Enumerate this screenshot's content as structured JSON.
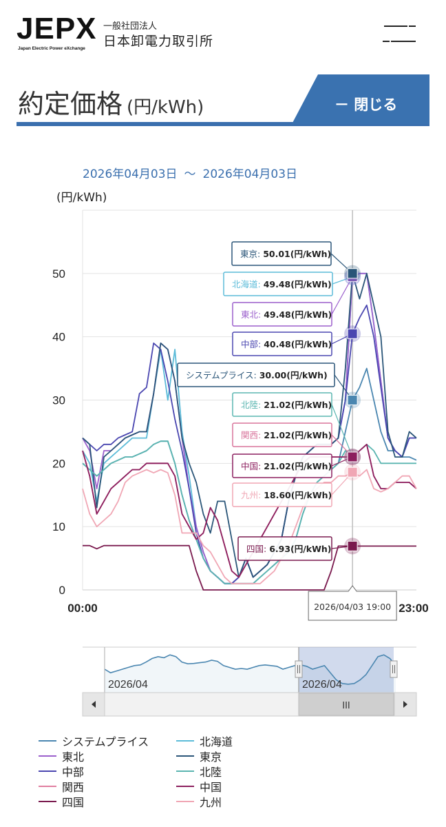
{
  "header": {
    "logo_text": "JEPX",
    "logo_subtitle": "Japan Electric Power eXchange",
    "org_type": "一般社団法人",
    "org_name": "日本卸電力取引所",
    "menu_icon": "menu-icon"
  },
  "page": {
    "title": "約定価格",
    "title_unit": "(円/kWh)",
    "close_label": "－ 閉じる"
  },
  "range": {
    "from": "2026年04月03日",
    "separator": "〜",
    "to": "2026年04月03日"
  },
  "chart_data": {
    "type": "line",
    "title": "",
    "ylabel": "(円/kWh)",
    "xlabel": "",
    "ylim": [
      0,
      60
    ],
    "yticks": [
      0,
      10,
      20,
      30,
      40,
      50
    ],
    "x_tick_labels": [
      "00:00",
      "23:00"
    ],
    "hover_time": "2026/04/03 19:00",
    "hover_index": 38,
    "periods": 48,
    "series": [
      {
        "name": "システムプライス",
        "color": "#4a86b0",
        "values": [
          20,
          19,
          18,
          19,
          20,
          20.5,
          21,
          21,
          21.5,
          22,
          23,
          23.5,
          23.5,
          20,
          15,
          11,
          8,
          5,
          3,
          2,
          1,
          1,
          1,
          1,
          1,
          2,
          3,
          4,
          5,
          6,
          8,
          12,
          15,
          17,
          18,
          19,
          20,
          25,
          30,
          32,
          35,
          30,
          25,
          22,
          22,
          21,
          21,
          20.5
        ]
      },
      {
        "name": "北海道",
        "color": "#5bbbd8",
        "values": [
          22,
          20,
          14,
          20,
          21,
          22,
          23,
          24,
          24,
          24,
          31,
          38,
          30,
          38,
          25,
          18,
          10,
          6,
          3,
          2,
          1,
          1,
          2,
          5,
          2,
          3,
          4,
          6,
          8,
          14,
          18,
          21,
          22,
          23,
          23,
          23,
          24,
          30,
          49.48,
          50,
          50,
          42,
          33,
          24,
          22,
          21,
          24,
          24
        ]
      },
      {
        "name": "東北",
        "color": "#9b5fcc",
        "values": [
          24,
          22,
          16,
          22,
          22,
          23,
          24,
          24.5,
          25,
          25,
          31,
          39,
          38,
          33,
          24,
          16,
          10,
          6,
          3,
          2,
          1,
          1,
          2,
          5,
          2,
          3,
          4,
          6,
          8,
          14,
          18,
          21,
          22,
          23,
          23,
          23,
          24,
          30,
          49.48,
          50,
          50,
          42,
          33,
          24,
          22,
          21,
          24,
          24
        ]
      },
      {
        "name": "中部",
        "color": "#4a46b0",
        "values": [
          24,
          23,
          22,
          23,
          23,
          24,
          24.5,
          25,
          31,
          32,
          39,
          38,
          33,
          27,
          22,
          16,
          9,
          5,
          3,
          2,
          1,
          1,
          2,
          5,
          2,
          3,
          4,
          6,
          8,
          14,
          18,
          21,
          22,
          23,
          23,
          23,
          24,
          30,
          40.48,
          43,
          45,
          40,
          32,
          24,
          22,
          21,
          24,
          24
        ]
      },
      {
        "name": "東京",
        "color": "#2a5578",
        "values": [
          24,
          23,
          13,
          21,
          22,
          23,
          24,
          24.5,
          25,
          25,
          31,
          39,
          38,
          33,
          24,
          20,
          17,
          12,
          9,
          14,
          14,
          8,
          2,
          5,
          2,
          3,
          4,
          6,
          8,
          14,
          18,
          21,
          22,
          23,
          23,
          23,
          24,
          35,
          50.01,
          46,
          50,
          45,
          40,
          25,
          21,
          21,
          25,
          24
        ]
      },
      {
        "name": "北陸",
        "color": "#5ab5b0",
        "values": [
          20,
          19,
          18,
          19,
          20,
          20.5,
          21,
          21,
          21.5,
          22,
          23,
          23.5,
          23.5,
          20,
          15,
          11,
          8,
          5,
          3,
          2,
          1,
          1,
          1,
          1,
          1,
          2,
          3,
          4,
          5,
          6,
          8,
          12,
          15,
          17,
          18,
          19,
          20,
          22,
          21.02,
          22,
          23,
          22,
          20,
          20,
          20,
          20,
          20,
          20
        ]
      },
      {
        "name": "関西",
        "color": "#d8739a",
        "values": [
          22,
          18,
          12,
          14,
          16,
          17,
          18,
          19,
          19,
          20,
          20,
          20,
          20,
          18,
          12,
          10,
          8,
          9,
          13,
          11,
          7,
          3,
          2,
          4,
          6,
          8,
          10,
          12,
          14,
          16,
          18,
          20,
          21,
          21,
          21,
          21,
          21,
          21,
          21.02,
          22,
          23,
          18,
          16,
          16,
          17,
          17,
          17,
          16
        ]
      },
      {
        "name": "中国",
        "color": "#8c1f5e",
        "values": [
          22,
          18,
          12,
          14,
          16,
          17,
          18,
          19,
          19,
          20,
          20,
          20,
          20,
          18,
          12,
          10,
          8,
          9,
          13,
          11,
          7,
          3,
          2,
          4,
          6,
          8,
          10,
          12,
          14,
          16,
          18,
          20,
          21,
          21,
          21,
          21,
          21,
          21,
          21.02,
          22,
          23,
          18,
          16,
          16,
          17,
          17,
          17,
          16
        ]
      },
      {
        "name": "四国",
        "color": "#7a1a4e",
        "values": [
          7,
          7,
          6.5,
          7,
          7,
          7,
          7,
          7,
          7,
          7,
          7,
          7,
          7,
          7,
          7,
          7,
          3,
          0,
          0,
          0,
          0,
          0,
          0,
          0,
          0,
          0,
          0,
          0,
          0,
          0,
          0,
          0,
          0,
          0,
          0,
          3,
          6.93,
          6.93,
          6.93,
          6.93,
          6.93,
          6.93,
          6.93,
          6.93,
          6.93,
          6.93,
          6.93,
          6.93
        ]
      },
      {
        "name": "九州",
        "color": "#f0a6b4",
        "values": [
          16,
          12,
          10,
          11,
          12,
          14,
          17,
          18,
          18.5,
          19,
          18.5,
          19,
          18.5,
          15,
          9,
          9,
          9,
          7,
          6,
          4,
          2,
          1,
          1,
          1,
          1,
          1,
          2,
          3,
          5,
          7,
          10,
          13,
          15,
          16,
          17,
          17,
          18,
          18,
          18.6,
          18,
          19,
          16,
          15.5,
          16,
          17,
          18,
          18,
          16
        ]
      }
    ],
    "tooltips": [
      {
        "region": "東京",
        "value": "50.01(円/kWh)",
        "color": "#2a5578"
      },
      {
        "region": "北海道",
        "value": "49.48(円/kWh)",
        "color": "#5bbbd8"
      },
      {
        "region": "東北",
        "value": "49.48(円/kWh)",
        "color": "#9b5fcc"
      },
      {
        "region": "中部",
        "value": "40.48(円/kWh)",
        "color": "#4a46b0"
      },
      {
        "region": "システムプライス",
        "value": "30.00(円/kWh)",
        "color": "#2a5578"
      },
      {
        "region": "北陸",
        "value": "21.02(円/kWh)",
        "color": "#5ab5b0"
      },
      {
        "region": "関西",
        "value": "21.02(円/kWh)",
        "color": "#d8739a"
      },
      {
        "region": "中国",
        "value": "21.02(円/kWh)",
        "color": "#8c1f5e"
      },
      {
        "region": "九州",
        "value": "18.60(円/kWh)",
        "color": "#f0a6b4"
      },
      {
        "region": "四国",
        "value": "6.93(円/kWh)",
        "color": "#7a1a4e"
      }
    ],
    "navigator": {
      "labels": [
        "2026/04",
        "2026/04"
      ],
      "handle_grip": "III"
    }
  },
  "legend": [
    {
      "name": "システムプライス",
      "color": "#4a86b0"
    },
    {
      "name": "北海道",
      "color": "#5bbbd8"
    },
    {
      "name": "東北",
      "color": "#9b5fcc"
    },
    {
      "name": "東京",
      "color": "#2a5578"
    },
    {
      "name": "中部",
      "color": "#4a46b0"
    },
    {
      "name": "北陸",
      "color": "#5ab5b0"
    },
    {
      "name": "関西",
      "color": "#e07ea0"
    },
    {
      "name": "中国",
      "color": "#8c1f5e"
    },
    {
      "name": "四国",
      "color": "#7a1a4e"
    },
    {
      "name": "九州",
      "color": "#f0a6b4"
    }
  ]
}
